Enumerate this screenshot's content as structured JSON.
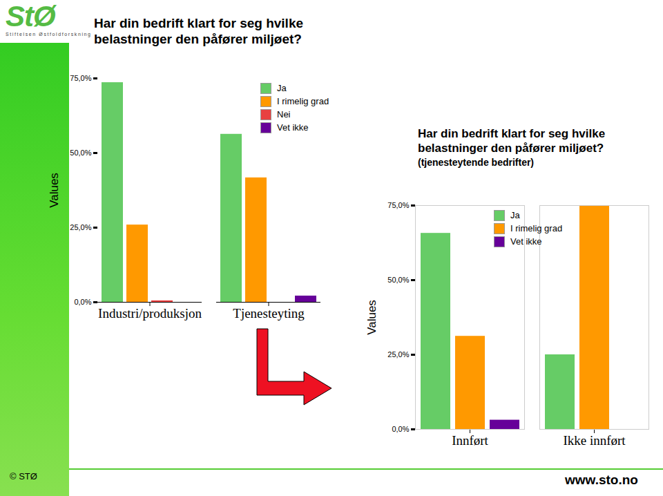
{
  "page": {
    "title": "Har din bedrift klart for seg hvilke belastninger den påfører miljøet?",
    "logo": "StØ",
    "logo_caption": "Stiftelsen Østfoldforskning",
    "footer_left": "© STØ",
    "footer_right": "www.sto.no"
  },
  "chart_data": [
    {
      "type": "bar",
      "ylabel": "Values",
      "categories": [
        "Industri/produksjon",
        "Tjenesteyting"
      ],
      "series": [
        {
          "name": "Ja",
          "color": "#66cc66",
          "values": [
            73.6,
            56.3
          ]
        },
        {
          "name": "I rimelig grad",
          "color": "#ff9900",
          "values": [
            25.9,
            41.7
          ]
        },
        {
          "name": "Nei",
          "color": "#e84040",
          "values": [
            0.5,
            0
          ]
        },
        {
          "name": "Vet ikke",
          "color": "#660099",
          "values": [
            0,
            2.1
          ]
        }
      ],
      "ylim": [
        0,
        75
      ],
      "yticks": [
        {
          "value": 0,
          "label": "0,0%"
        },
        {
          "value": 25,
          "label": "25,0%"
        },
        {
          "value": 50,
          "label": "50,0%"
        },
        {
          "value": 75,
          "label": "75,0%"
        }
      ],
      "grid": false,
      "legend": "top-right"
    },
    {
      "type": "bar",
      "title": "Har din bedrift klart for seg hvilke belastninger den påfører miljøet?",
      "subtitle": "(tjenesteytende bedrifter)",
      "ylabel": "Values",
      "categories": [
        "Innført",
        "Ikke innført"
      ],
      "series": [
        {
          "name": "Ja",
          "color": "#66cc66",
          "values": [
            65.7,
            25.0
          ]
        },
        {
          "name": "I rimelig grad",
          "color": "#ff9900",
          "values": [
            31.2,
            75.0
          ]
        },
        {
          "name": "Vet ikke",
          "color": "#660099",
          "values": [
            3.1,
            0
          ]
        }
      ],
      "ylim": [
        0,
        75
      ],
      "yticks": [
        {
          "value": 0,
          "label": "0,0%"
        },
        {
          "value": 25,
          "label": "25,0%"
        },
        {
          "value": 50,
          "label": "50,0%"
        },
        {
          "value": 75,
          "label": "75,0%"
        }
      ],
      "grid": false,
      "legend": "top"
    }
  ]
}
